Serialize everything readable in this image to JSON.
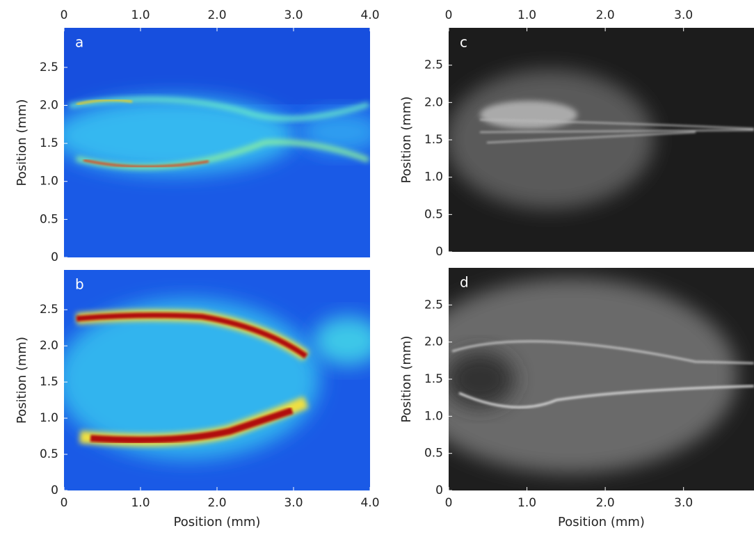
{
  "chart_data": [
    {
      "type": "image",
      "label": "a",
      "xaxis": "top",
      "y_label": "Position (mm)",
      "xlim": [
        0,
        4.0
      ],
      "ylim": [
        0,
        3.02
      ],
      "xticks": [
        0,
        {
          "value": 1,
          "label": "1.0"
        },
        {
          "value": 2,
          "label": "2.0"
        },
        {
          "value": 3,
          "label": "3.0"
        },
        {
          "value": 4,
          "label": "4.0"
        }
      ],
      "yticks": [
        0,
        0.5,
        {
          "value": 1,
          "label": "1.0"
        },
        1.5,
        {
          "value": 2,
          "label": "2.0"
        },
        2.5
      ]
    },
    {
      "type": "image",
      "label": "b",
      "xaxis": "bottom",
      "x_label": "Position (mm)",
      "y_label": "Position (mm)",
      "xlim": [
        0,
        4.0
      ],
      "ylim": [
        0,
        3.05
      ],
      "xticks": [
        0,
        {
          "value": 1,
          "label": "1.0"
        },
        {
          "value": 2,
          "label": "2.0"
        },
        {
          "value": 3,
          "label": "3.0"
        },
        {
          "value": 4,
          "label": "4.0"
        }
      ],
      "yticks": [
        0,
        0.5,
        {
          "value": 1,
          "label": "1.0"
        },
        1.5,
        {
          "value": 2,
          "label": "2.0"
        },
        2.5
      ]
    },
    {
      "type": "image",
      "label": "c",
      "xaxis": "top",
      "y_label": "Position (mm)",
      "xlim": [
        0,
        3.9
      ],
      "ylim": [
        0,
        3.0
      ],
      "xticks": [
        0,
        {
          "value": 1,
          "label": "1.0"
        },
        {
          "value": 2,
          "label": "2.0"
        },
        {
          "value": 3,
          "label": "3.0"
        }
      ],
      "yticks": [
        0,
        0.5,
        {
          "value": 1,
          "label": "1.0"
        },
        1.5,
        {
          "value": 2,
          "label": "2.0"
        },
        2.5
      ]
    },
    {
      "type": "image",
      "label": "d",
      "xaxis": "bottom",
      "x_label": "Position (mm)",
      "y_label": "Position (mm)",
      "xlim": [
        0,
        3.9
      ],
      "ylim": [
        0,
        3.0
      ],
      "xticks": [
        0,
        {
          "value": 1,
          "label": "1.0"
        },
        {
          "value": 2,
          "label": "2.0"
        },
        {
          "value": 3,
          "label": "3.0"
        }
      ],
      "yticks": [
        0,
        0.5,
        {
          "value": 1,
          "label": "1.0"
        },
        1.5,
        {
          "value": 2,
          "label": "2.0"
        },
        2.5
      ]
    }
  ]
}
